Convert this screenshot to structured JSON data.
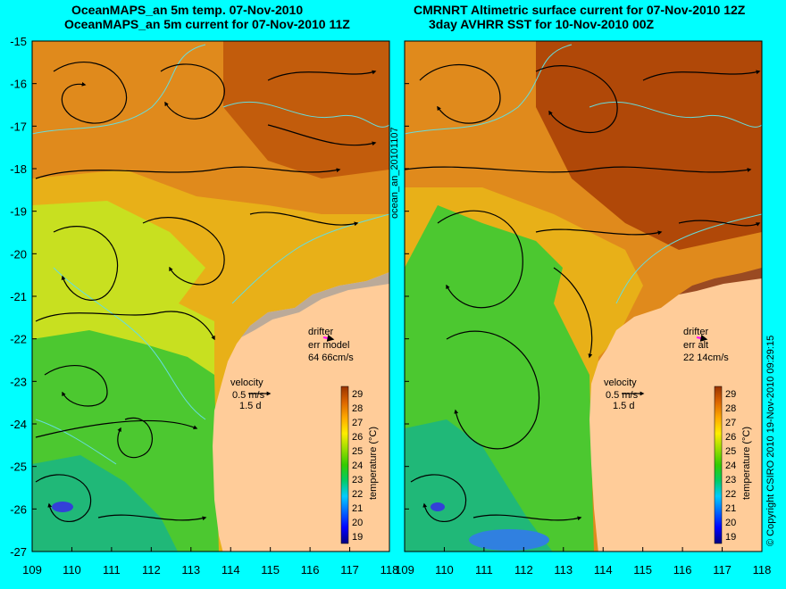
{
  "left_panel": {
    "title_line1": "OceanMAPS_an 5m temp. 07-Nov-2010",
    "title_line2": "OceanMAPS_an 5m current for 07-Nov-2010 11Z",
    "drifter_label": "drifter",
    "drifter_err_label": "err model",
    "drifter_err_value": "64 66cm/s",
    "velocity_label": "velocity",
    "velocity_scale": "0.5 m/s",
    "velocity_days": "1.5 d"
  },
  "right_panel": {
    "title_line1": "CMRNRT Altimetric surface current for 07-Nov-2010 12Z",
    "title_line2": "3day AVHRR SST for 10-Nov-2010 00Z",
    "drifter_label": "drifter",
    "drifter_err_label": "err alt",
    "drifter_err_value": "22 14cm/s",
    "velocity_label": "velocity",
    "velocity_scale": "0.5 m/s",
    "velocity_days": "1.5 d"
  },
  "side_label": "ocean_an_20101107",
  "copyright": "© Copyright CSIRO 2010   19-Nov-2010 09:29:15",
  "axes": {
    "x_ticks": [
      "109",
      "110",
      "111",
      "112",
      "113",
      "114",
      "115",
      "116",
      "117",
      "118"
    ],
    "y_ticks": [
      "-15",
      "-16",
      "-17",
      "-18",
      "-19",
      "-20",
      "-21",
      "-22",
      "-23",
      "-24",
      "-25",
      "-26",
      "-27"
    ],
    "lon_range": [
      109,
      118
    ],
    "lat_range": [
      -27,
      -15
    ]
  },
  "colorbar": {
    "label": "temperature (°C)",
    "ticks": [
      "19",
      "20",
      "21",
      "22",
      "23",
      "24",
      "25",
      "26",
      "27",
      "28",
      "29"
    ],
    "range": [
      18.5,
      29.5
    ]
  },
  "colors": {
    "background": "#00ffff",
    "land": "#ffcc99",
    "drifter": "#ff00ff",
    "coastline": "#66dddd"
  }
}
